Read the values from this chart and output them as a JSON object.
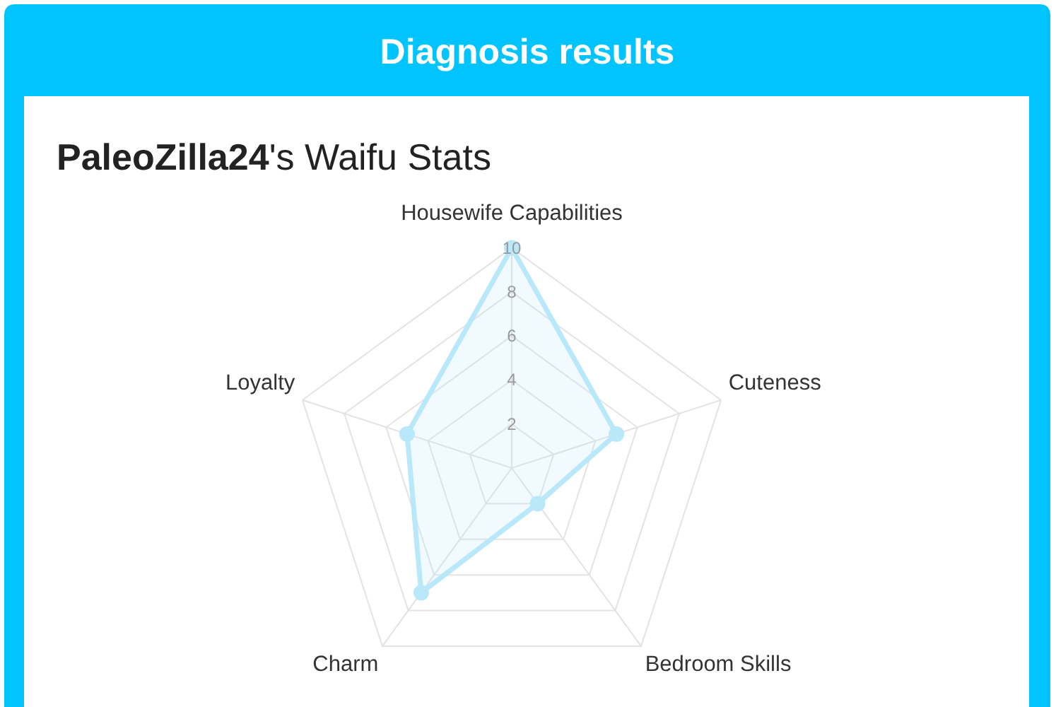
{
  "chart_data": {
    "type": "radar",
    "title": "Diagnosis results",
    "subtitle": "PaleoZilla24's Waifu Stats",
    "categories": [
      "Housewife Capabilities",
      "Cuteness",
      "Bedroom Skills",
      "Charm",
      "Loyalty"
    ],
    "series": [
      {
        "color": "#b8e8fa",
        "values": [
          10,
          5,
          2,
          7,
          5
        ]
      }
    ],
    "ylim": [
      0,
      10
    ],
    "yticks": [
      2,
      4,
      6,
      8,
      10
    ],
    "grid": true,
    "marker": "circle",
    "line_style": "solid"
  }
}
